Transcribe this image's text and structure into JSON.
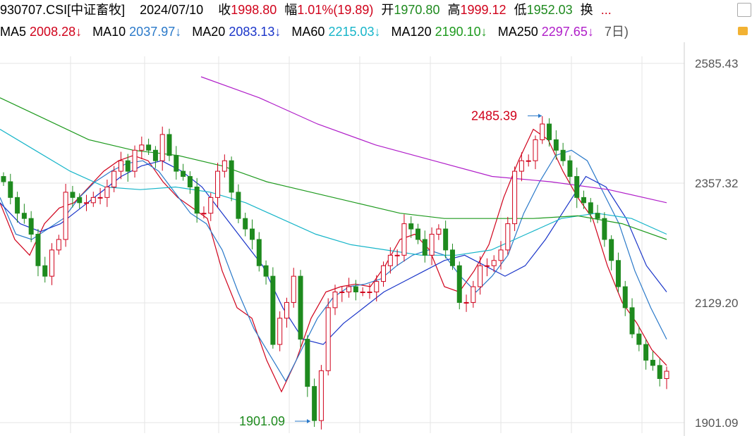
{
  "header": {
    "symbol": "930707.CSI[中证畜牧]",
    "date": "2024/07/10",
    "close_label": "收",
    "close": "1998.80",
    "change_label": "幅",
    "change": "1.01%(19.89)",
    "open_label": "开",
    "open": "1970.80",
    "high_label": "高",
    "high": "1999.12",
    "low_label": "低",
    "low": "1952.03",
    "turnover_label": "换",
    "more": "..."
  },
  "ma_row": [
    {
      "label": "MA5",
      "value": "2008.28↓",
      "color": "#d0021b"
    },
    {
      "label": "MA10",
      "value": "2037.97↓",
      "color": "#2a79c9"
    },
    {
      "label": "MA20",
      "value": "2083.13↓",
      "color": "#1a35c9"
    },
    {
      "label": "MA60",
      "value": "2215.03↓",
      "color": "#17b5c9"
    },
    {
      "label": "MA120",
      "value": "2190.10↓",
      "color": "#1e9a1e"
    },
    {
      "label": "MA250",
      "value": "2297.65↓",
      "color": "#b01ec9"
    }
  ],
  "ma_row_cut": "7日)",
  "colors": {
    "up": "#d0021b",
    "down": "#1e8a1e",
    "grid": "#e4e4e4"
  },
  "chart_data": {
    "type": "candlestick",
    "y_ticks": [
      "2585.43",
      "2357.32",
      "2129.20",
      "1901.09"
    ],
    "ylim": [
      1901.09,
      2585.43
    ],
    "max_annotation": "2485.39",
    "min_annotation": "1901.09",
    "close_series": [
      2360,
      2330,
      2300,
      2290,
      2260,
      2200,
      2180,
      2230,
      2250,
      2340,
      2330,
      2320,
      2320,
      2330,
      2330,
      2350,
      2380,
      2400,
      2380,
      2420,
      2430,
      2420,
      2400,
      2450,
      2410,
      2380,
      2370,
      2350,
      2300,
      2300,
      2330,
      2380,
      2400,
      2340,
      2290,
      2270,
      2250,
      2200,
      2180,
      2050,
      2100,
      2130,
      2180,
      2060,
      1970,
      1905,
      2000,
      2120,
      2150,
      2150,
      2160,
      2150,
      2150,
      2150,
      2170,
      2200,
      2220,
      2220,
      2280,
      2270,
      2250,
      2220,
      2260,
      2270,
      2230,
      2200,
      2130,
      2130,
      2160,
      2200,
      2200,
      2210,
      2230,
      2280,
      2380,
      2400,
      2400,
      2440,
      2470,
      2440,
      2420,
      2400,
      2370,
      2330,
      2320,
      2300,
      2290,
      2250,
      2210,
      2160,
      2120,
      2070,
      2050,
      2020,
      2010,
      1985,
      1999
    ],
    "ma_series": [
      {
        "name": "MA5",
        "color": "#d0021b",
        "points": [
          2320,
          2250,
          2220,
          2280,
          2310,
          2320,
          2350,
          2380,
          2400,
          2410,
          2400,
          2360,
          2330,
          2310,
          2290,
          2190,
          2120,
          2100,
          2020,
          1960,
          2020,
          2100,
          2150,
          2160,
          2165,
          2160,
          2200,
          2250,
          2260,
          2230,
          2160,
          2150,
          2190,
          2240,
          2330,
          2400,
          2460,
          2440,
          2380,
          2330,
          2290,
          2200,
          2130,
          2090,
          2040,
          2010
        ]
      },
      {
        "name": "MA10",
        "color": "#2a79c9",
        "points": [
          2330,
          2260,
          2250,
          2270,
          2290,
          2330,
          2360,
          2380,
          2395,
          2400,
          2380,
          2340,
          2300,
          2280,
          2230,
          2150,
          2080,
          2030,
          1980,
          2040,
          2100,
          2140,
          2160,
          2165,
          2175,
          2200,
          2220,
          2230,
          2220,
          2180,
          2150,
          2180,
          2220,
          2300,
          2360,
          2410,
          2420,
          2400,
          2340,
          2280,
          2190,
          2120,
          2060
        ]
      },
      {
        "name": "MA20",
        "color": "#1a35c9",
        "points": [
          2320,
          2280,
          2265,
          2280,
          2310,
          2340,
          2370,
          2390,
          2400,
          2380,
          2350,
          2300,
          2250,
          2200,
          2120,
          2060,
          2050,
          2090,
          2120,
          2150,
          2170,
          2190,
          2210,
          2220,
          2200,
          2180,
          2200,
          2250,
          2310,
          2370,
          2350,
          2290,
          2200,
          2150
        ]
      },
      {
        "name": "MA60",
        "color": "#17b5c9",
        "points": [
          2460,
          2420,
          2380,
          2350,
          2345,
          2350,
          2340,
          2320,
          2290,
          2260,
          2240,
          2230,
          2220,
          2220,
          2230,
          2260,
          2290,
          2300,
          2290,
          2260
        ]
      },
      {
        "name": "MA120",
        "color": "#1e9a1e",
        "points": [
          2520,
          2480,
          2440,
          2420,
          2410,
          2390,
          2360,
          2340,
          2320,
          2300,
          2290,
          2290,
          2290,
          2295,
          2280,
          2250
        ]
      },
      {
        "name": "MA250",
        "color": "#b01ec9",
        "points": [
          2560,
          2520,
          2470,
          2430,
          2400,
          2370,
          2360,
          2345,
          2320
        ]
      }
    ]
  }
}
